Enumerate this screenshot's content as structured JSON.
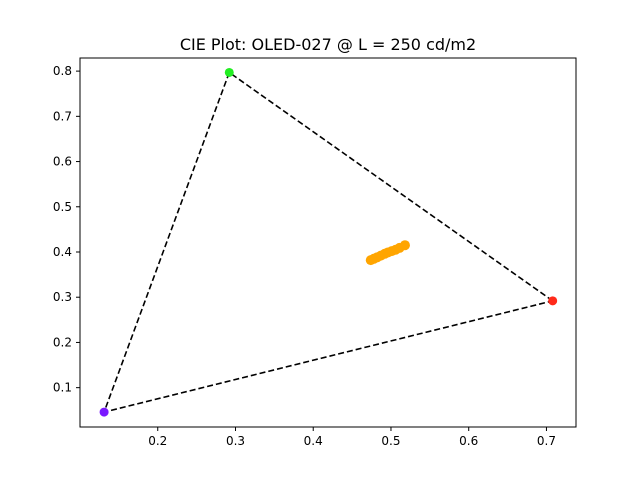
{
  "chart_data": {
    "type": "scatter",
    "title": "CIE Plot: OLED-027 @ L = 250 cd/m2",
    "xlabel": "",
    "ylabel": "",
    "xlim": [
      0.1,
      0.738
    ],
    "ylim": [
      0.013,
      0.829
    ],
    "x_ticks": [
      0.2,
      0.3,
      0.4,
      0.5,
      0.6,
      0.7
    ],
    "y_ticks": [
      0.1,
      0.2,
      0.3,
      0.4,
      0.5,
      0.6,
      0.7,
      0.8
    ],
    "grid": false,
    "gamut_triangle": {
      "style": "dashed",
      "color": "#000000",
      "vertices": [
        {
          "x": 0.708,
          "y": 0.292,
          "color": "#ff2a1a"
        },
        {
          "x": 0.292,
          "y": 0.797,
          "color": "#22ee22"
        },
        {
          "x": 0.131,
          "y": 0.046,
          "color": "#7a18ff"
        }
      ]
    },
    "series": [
      {
        "color": "#ffa500",
        "points": [
          {
            "x": 0.474,
            "y": 0.382
          },
          {
            "x": 0.478,
            "y": 0.385
          },
          {
            "x": 0.482,
            "y": 0.388
          },
          {
            "x": 0.487,
            "y": 0.392
          },
          {
            "x": 0.492,
            "y": 0.396
          },
          {
            "x": 0.496,
            "y": 0.399
          },
          {
            "x": 0.501,
            "y": 0.402
          },
          {
            "x": 0.506,
            "y": 0.405
          },
          {
            "x": 0.511,
            "y": 0.409
          },
          {
            "x": 0.518,
            "y": 0.415
          }
        ]
      }
    ]
  }
}
